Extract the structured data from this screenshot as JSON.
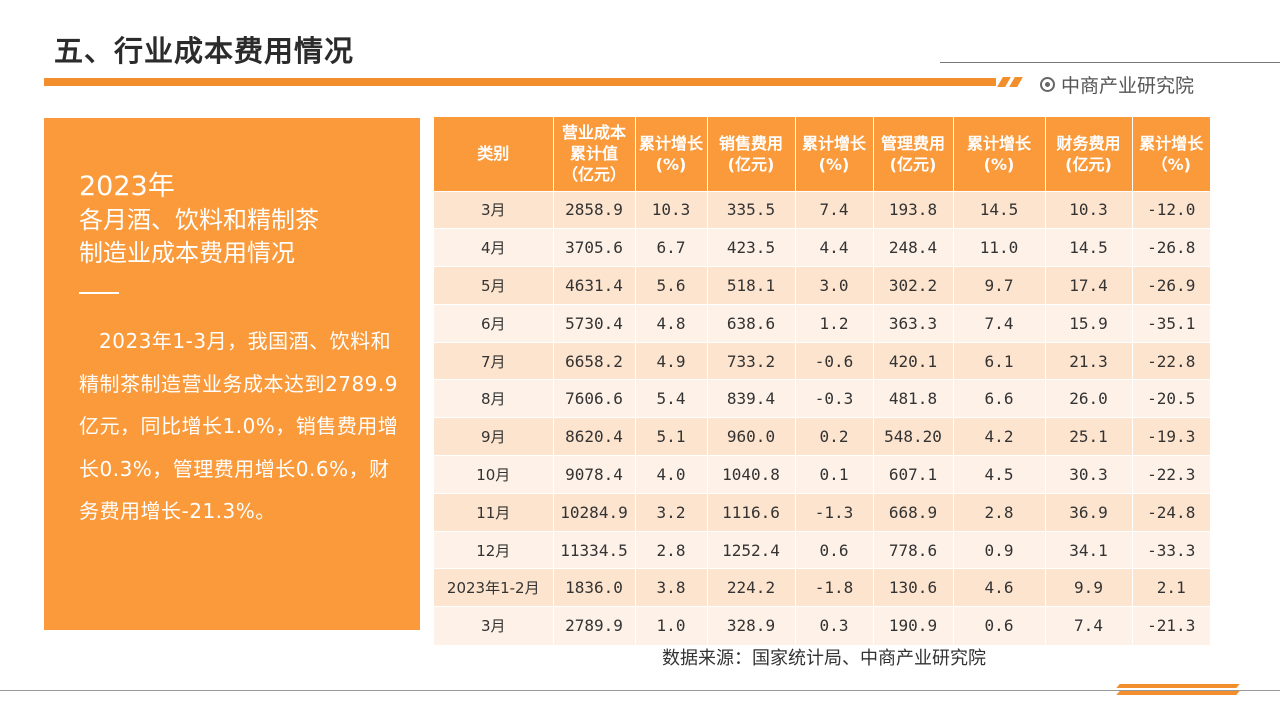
{
  "page_title": "五、行业成本费用情况",
  "brand": {
    "name": "中商产业研究院",
    "icon": "target-icon"
  },
  "colors": {
    "accent": "#fb9a3b",
    "row_odd": "#fde4cf",
    "row_even": "#fdf1e8"
  },
  "left_panel": {
    "year": "2023年",
    "heading_line1": "各月酒、饮料和精制茶",
    "heading_line2": "制造业成本费用情况",
    "body": "2023年1-3月，我国酒、饮料和精制茶制造营业务成本达到2789.9亿元，同比增长1.0%，销售费用增长0.3%，管理费用增长0.6%，财务费用增长-21.3%。"
  },
  "table": {
    "headers": [
      "类别",
      "营业成本累计值（亿元）",
      "累计增长(%)",
      "销售费用(亿元)",
      "累计增长(%)",
      "管理费用(亿元)",
      "累计增长(%)",
      "财务费用(亿元)",
      "累计增长（%)"
    ],
    "rows": [
      [
        "3月",
        "2858.9",
        "10.3",
        "335.5",
        "7.4",
        "193.8",
        "14.5",
        "10.3",
        "-12.0"
      ],
      [
        "4月",
        "3705.6",
        "6.7",
        "423.5",
        "4.4",
        "248.4",
        "11.0",
        "14.5",
        "-26.8"
      ],
      [
        "5月",
        "4631.4",
        "5.6",
        "518.1",
        "3.0",
        "302.2",
        "9.7",
        "17.4",
        "-26.9"
      ],
      [
        "6月",
        "5730.4",
        "4.8",
        "638.6",
        "1.2",
        "363.3",
        "7.4",
        "15.9",
        "-35.1"
      ],
      [
        "7月",
        "6658.2",
        "4.9",
        "733.2",
        "-0.6",
        "420.1",
        "6.1",
        "21.3",
        "-22.8"
      ],
      [
        "8月",
        "7606.6",
        "5.4",
        "839.4",
        "-0.3",
        "481.8",
        "6.6",
        "26.0",
        "-20.5"
      ],
      [
        "9月",
        "8620.4",
        "5.1",
        "960.0",
        "0.2",
        "548.20",
        "4.2",
        "25.1",
        "-19.3"
      ],
      [
        "10月",
        "9078.4",
        "4.0",
        "1040.8",
        "0.1",
        "607.1",
        "4.5",
        "30.3",
        "-22.3"
      ],
      [
        "11月",
        "10284.9",
        "3.2",
        "1116.6",
        "-1.3",
        "668.9",
        "2.8",
        "36.9",
        "-24.8"
      ],
      [
        "12月",
        "11334.5",
        "2.8",
        "1252.4",
        "0.6",
        "778.6",
        "0.9",
        "34.1",
        "-33.3"
      ],
      [
        "2023年1-2月",
        "1836.0",
        "3.8",
        "224.2",
        "-1.8",
        "130.6",
        "4.6",
        "9.9",
        "2.1"
      ],
      [
        "3月",
        "2789.9",
        "1.0",
        "328.9",
        "0.3",
        "190.9",
        "0.6",
        "7.4",
        "-21.3"
      ]
    ]
  },
  "source": "数据来源：国家统计局、中商产业研究院"
}
